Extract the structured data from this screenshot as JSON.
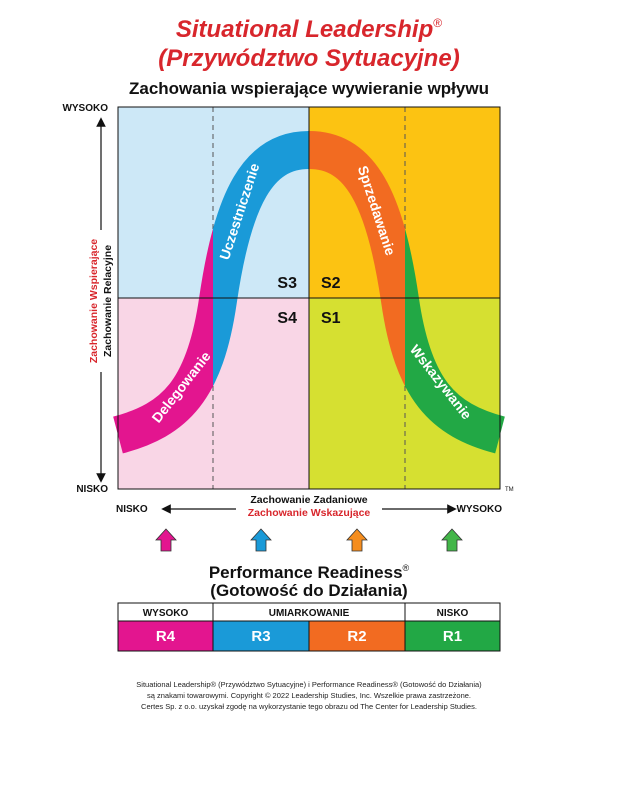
{
  "title": {
    "line1": "Situational Leadership",
    "reg": "®",
    "line2": "(Przywództwo Sytuacyjne)"
  },
  "subtitle": "Zachowania wspierające wywieranie wpływu",
  "y_axis": {
    "high": "WYSOKO",
    "low": "NISKO",
    "label_red": "Zachowanie Wspierające",
    "label_black": "Zachowanie Relacyjne"
  },
  "x_axis": {
    "low": "NISKO",
    "high": "WYSOKO",
    "label_black": "Zachowanie Zadaniowe",
    "label_red": "Zachowanie Wskazujące"
  },
  "trademark": "TM",
  "quadrants": [
    {
      "code": "S3",
      "color": "#cde8f7"
    },
    {
      "code": "S2",
      "color": "#fcc312"
    },
    {
      "code": "S4",
      "color": "#f9d6e6"
    },
    {
      "code": "S1",
      "color": "#d6e031"
    }
  ],
  "curve_segments": [
    {
      "label": "Delegowanie",
      "color": "#e3158f"
    },
    {
      "label": "Uczestniczenie",
      "color": "#1a9ad8"
    },
    {
      "label": "Sprzedawanie",
      "color": "#f26b21"
    },
    {
      "label": "Wskazywanie",
      "color": "#22a845"
    }
  ],
  "arrow_colors": [
    "#e3158f",
    "#1a9ad8",
    "#f58d1e",
    "#43b649"
  ],
  "readiness": {
    "title": "Performance Readiness",
    "reg": "®",
    "subtitle": "(Gotowość do Działania)",
    "levels": [
      {
        "header": "WYSOKO",
        "span": 1
      },
      {
        "header": "UMIARKOWANIE",
        "span": 2
      },
      {
        "header": "NISKO",
        "span": 1
      }
    ],
    "cells": [
      {
        "code": "R4",
        "color": "#e3158f"
      },
      {
        "code": "R3",
        "color": "#1a9ad8"
      },
      {
        "code": "R2",
        "color": "#f26b21"
      },
      {
        "code": "R1",
        "color": "#22a845"
      }
    ]
  },
  "footer": [
    "Situational Leadership® (Przywództwo Sytuacyjne) i Performance Readiness® (Gotowość do Działania)",
    "są znakami towarowymi. Copyright © 2022 Leadership Studies, Inc. Wszelkie prawa zastrzeżone.",
    "Certes Sp. z o.o. uzyskał zgodę na wykorzystanie tego obrazu od The Center for Leadership Studies."
  ]
}
